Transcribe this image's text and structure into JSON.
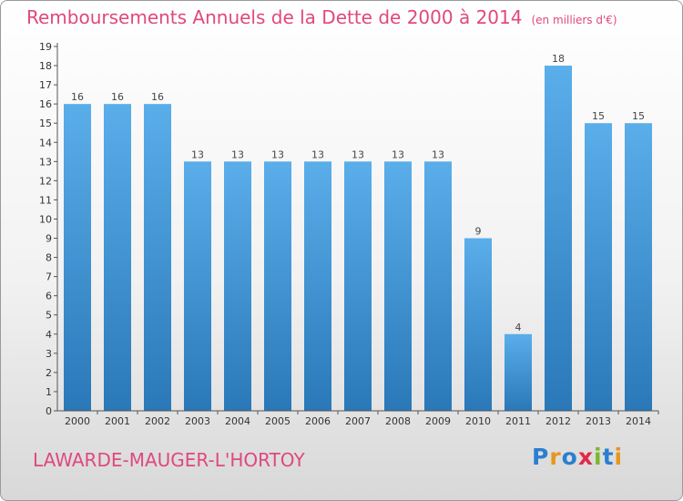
{
  "title": "Remboursements Annuels de la Dette de 2000 à 2014",
  "unit": "(en milliers d'€)",
  "commune": "LAWARDE-MAUGER-L'HORTOY",
  "brand": {
    "text": "Proxiti",
    "letter_colors": [
      "#2a7fd0",
      "#e8961c",
      "#2a7fd0",
      "#e02a4a",
      "#7ab82c",
      "#2a7fd0",
      "#e8961c"
    ]
  },
  "colors": {
    "title": "#e0487f",
    "bar_top": "#5aaeea",
    "bar_bottom": "#2a78b8",
    "axis": "#555555"
  },
  "chart_data": {
    "type": "bar",
    "title": "Remboursements Annuels de la Dette de 2000 à 2014",
    "xlabel": "",
    "ylabel": "",
    "categories": [
      "2000",
      "2001",
      "2002",
      "2003",
      "2004",
      "2005",
      "2006",
      "2007",
      "2008",
      "2009",
      "2010",
      "2011",
      "2012",
      "2013",
      "2014"
    ],
    "values": [
      16,
      16,
      16,
      13,
      13,
      13,
      13,
      13,
      13,
      13,
      9,
      4,
      18,
      15,
      15
    ],
    "ylim": [
      0,
      19
    ],
    "yticks": [
      0,
      1,
      2,
      3,
      4,
      5,
      6,
      7,
      8,
      9,
      10,
      11,
      12,
      13,
      14,
      15,
      16,
      17,
      18,
      19
    ],
    "grid": false,
    "data_labels": true
  }
}
